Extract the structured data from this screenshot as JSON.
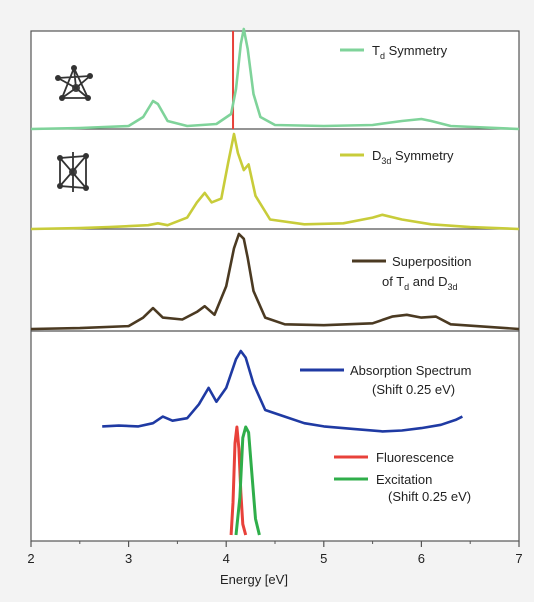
{
  "chart_data": {
    "type": "line",
    "xlabel": "Energy [eV]",
    "xlim": [
      2,
      7
    ],
    "xticks": [
      "2",
      "3",
      "4",
      "5",
      "6",
      "7"
    ],
    "colors": {
      "td": "#7fd39a",
      "d3d": "#c8cc3a",
      "superposition": "#4b3a22",
      "absorption": "#1f3aa3",
      "fluorescence": "#e8413a",
      "excitation": "#2fae4a"
    },
    "panels": [
      {
        "id": "td",
        "label": [
          "Td Symmetry"
        ],
        "label_rich": [
          {
            "main": "T",
            "sub": "d",
            "rest": " Symmetry"
          }
        ],
        "series": [
          {
            "name": "Td Symmetry",
            "x": [
              2.0,
              2.5,
              3.0,
              3.15,
              3.25,
              3.3,
              3.4,
              3.6,
              3.9,
              4.05,
              4.1,
              4.15,
              4.18,
              4.22,
              4.28,
              4.35,
              4.5,
              5.0,
              5.5,
              5.8,
              6.0,
              6.1,
              6.3,
              7.0
            ],
            "y": [
              0.0,
              0.01,
              0.03,
              0.12,
              0.28,
              0.25,
              0.08,
              0.03,
              0.05,
              0.15,
              0.4,
              0.85,
              1.0,
              0.8,
              0.35,
              0.12,
              0.04,
              0.03,
              0.04,
              0.08,
              0.1,
              0.08,
              0.03,
              0.0
            ]
          }
        ]
      },
      {
        "id": "d3d",
        "label": [
          "D3d Symmetry"
        ],
        "label_rich": [
          {
            "main": "D",
            "sub": "3d",
            "rest": " Symmetry"
          }
        ],
        "series": [
          {
            "name": "D3d Symmetry",
            "x": [
              2.0,
              2.5,
              2.8,
              3.2,
              3.3,
              3.4,
              3.6,
              3.7,
              3.78,
              3.85,
              3.95,
              4.02,
              4.08,
              4.12,
              4.18,
              4.23,
              4.3,
              4.45,
              4.8,
              5.2,
              5.5,
              5.6,
              5.8,
              6.1,
              6.5,
              7.0
            ],
            "y": [
              0.0,
              0.01,
              0.02,
              0.04,
              0.06,
              0.04,
              0.12,
              0.28,
              0.38,
              0.28,
              0.32,
              0.7,
              1.0,
              0.8,
              0.62,
              0.68,
              0.35,
              0.1,
              0.05,
              0.06,
              0.12,
              0.15,
              0.1,
              0.05,
              0.02,
              0.0
            ]
          }
        ]
      },
      {
        "id": "sup",
        "label": [
          "Superposition",
          "of Td and D3d"
        ],
        "label_rich": [
          {
            "main": "Superposition",
            "sub": "",
            "rest": ""
          },
          {
            "main": "of T",
            "sub": "d",
            "rest": " and D",
            "sub2": "3d"
          }
        ],
        "series": [
          {
            "name": "Superposition of Td and D3d",
            "x": [
              2.0,
              2.5,
              3.0,
              3.15,
              3.25,
              3.35,
              3.55,
              3.7,
              3.78,
              3.88,
              4.0,
              4.08,
              4.13,
              4.18,
              4.22,
              4.28,
              4.4,
              4.6,
              5.0,
              5.5,
              5.7,
              5.85,
              6.0,
              6.15,
              6.3,
              7.0
            ],
            "y": [
              0.0,
              0.01,
              0.03,
              0.12,
              0.22,
              0.12,
              0.1,
              0.18,
              0.24,
              0.15,
              0.45,
              0.85,
              1.0,
              0.95,
              0.75,
              0.4,
              0.12,
              0.05,
              0.04,
              0.06,
              0.13,
              0.15,
              0.12,
              0.13,
              0.05,
              0.0
            ]
          }
        ]
      },
      {
        "id": "abs",
        "label": [
          "Absorption Spectrum",
          "(Shift 0.25 eV)"
        ],
        "label_rich": [
          {
            "main": "Absorption Spectrum",
            "sub": "",
            "rest": ""
          },
          {
            "main": "(Shift 0.25 eV)",
            "sub": "",
            "rest": ""
          }
        ],
        "series": [
          {
            "name": "Absorption Spectrum (Shift 0.25 eV)",
            "x": [
              2.73,
              2.9,
              3.1,
              3.25,
              3.35,
              3.45,
              3.6,
              3.72,
              3.82,
              3.9,
              4.0,
              4.1,
              4.15,
              4.2,
              4.28,
              4.4,
              4.6,
              4.8,
              5.0,
              5.3,
              5.6,
              5.8,
              6.0,
              6.2,
              6.35,
              6.42
            ],
            "y": [
              0.08,
              0.09,
              0.08,
              0.12,
              0.2,
              0.15,
              0.18,
              0.35,
              0.55,
              0.38,
              0.55,
              0.9,
              1.0,
              0.92,
              0.6,
              0.28,
              0.2,
              0.12,
              0.08,
              0.05,
              0.02,
              0.03,
              0.06,
              0.1,
              0.16,
              0.2
            ]
          }
        ]
      },
      {
        "id": "fluor",
        "label": [
          "Fluorescence",
          "Excitation",
          "(Shift 0.25 eV)"
        ],
        "label_rich": [],
        "series": [
          {
            "name": "Fluorescence",
            "x": [
              4.05,
              4.07,
              4.09,
              4.11,
              4.13,
              4.15,
              4.17,
              4.2
            ],
            "y": [
              0.0,
              0.3,
              0.85,
              1.0,
              0.8,
              0.4,
              0.1,
              0.0
            ]
          },
          {
            "name": "Excitation",
            "x": [
              4.1,
              4.14,
              4.17,
              4.2,
              4.23,
              4.26,
              4.3,
              4.34
            ],
            "y": [
              0.0,
              0.35,
              0.9,
              1.0,
              0.95,
              0.6,
              0.15,
              0.0
            ]
          }
        ]
      }
    ],
    "red_line_top": {
      "x": 4.07,
      "note": "red marker line in top panel"
    }
  }
}
